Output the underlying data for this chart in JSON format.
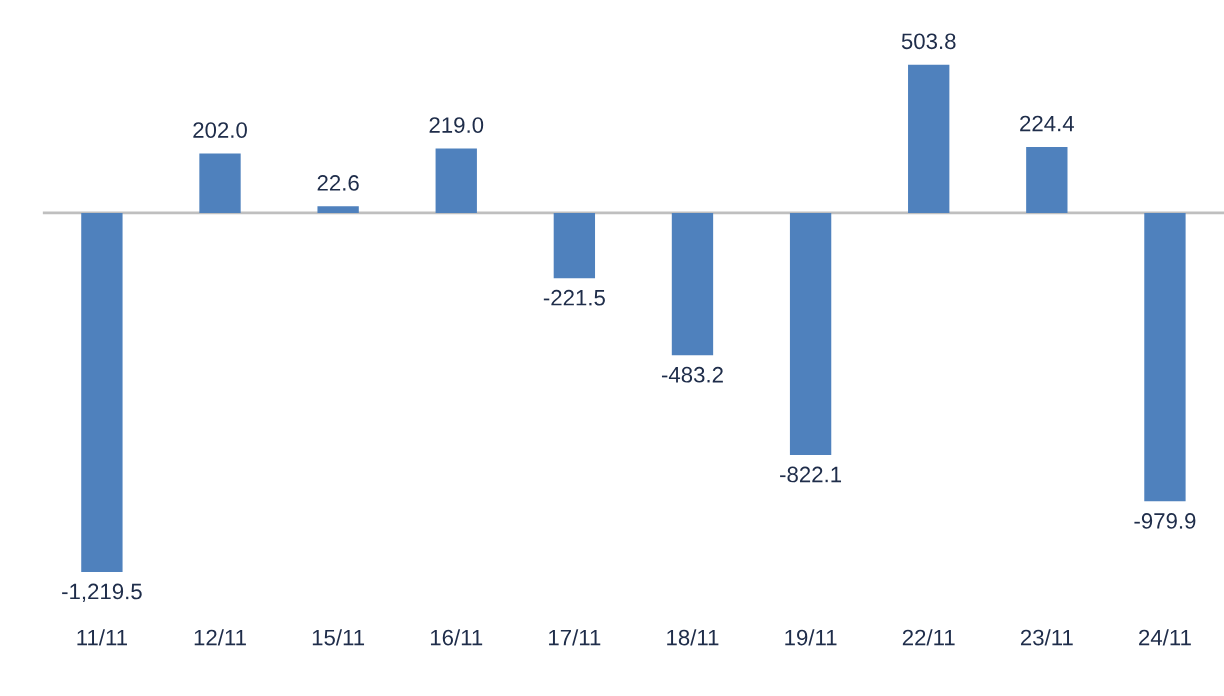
{
  "chart_data": {
    "type": "bar",
    "categories": [
      "11/11",
      "12/11",
      "15/11",
      "16/11",
      "17/11",
      "18/11",
      "19/11",
      "22/11",
      "23/11",
      "24/11"
    ],
    "values": [
      -1219.5,
      202.0,
      22.6,
      219.0,
      -221.5,
      -483.2,
      -822.1,
      503.8,
      224.4,
      -979.9
    ],
    "value_labels": [
      "-1,219.5",
      "202.0",
      "22.6",
      "219.0",
      "-221.5",
      "-483.2",
      "-822.1",
      "503.8",
      "224.4",
      "-979.9"
    ],
    "color": "#4f81bd",
    "grid": false,
    "legend": false
  }
}
